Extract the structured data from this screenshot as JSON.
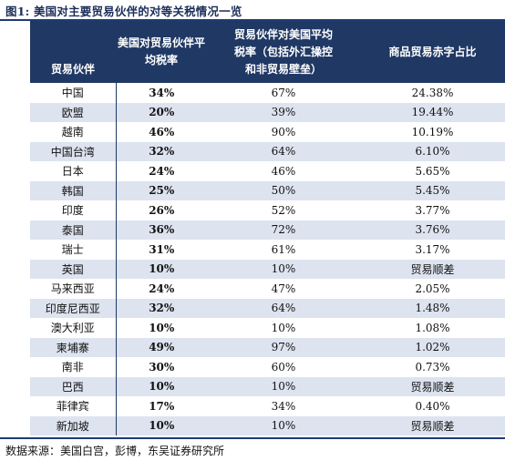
{
  "title": "图1:  美国对主要贸易伙伴的对等关税情况一览",
  "headers": {
    "col0": "贸易伙伴",
    "col1_line1": "美国对贸易伙伴平",
    "col1_line2": "均税率",
    "col2_line1": "贸易伙伴对美国平均",
    "col2_line2": "税率（包括外汇操控",
    "col2_line3": "和非贸易壁垒）",
    "col3": "商品贸易赤字占比"
  },
  "rows": [
    {
      "partner": "中国",
      "us_rate": "34%",
      "partner_rate": "67%",
      "deficit_share": "24.38%"
    },
    {
      "partner": "欧盟",
      "us_rate": "20%",
      "partner_rate": "39%",
      "deficit_share": "19.44%"
    },
    {
      "partner": "越南",
      "us_rate": "46%",
      "partner_rate": "90%",
      "deficit_share": "10.19%"
    },
    {
      "partner": "中国台湾",
      "us_rate": "32%",
      "partner_rate": "64%",
      "deficit_share": "6.10%"
    },
    {
      "partner": "日本",
      "us_rate": "24%",
      "partner_rate": "46%",
      "deficit_share": "5.65%"
    },
    {
      "partner": "韩国",
      "us_rate": "25%",
      "partner_rate": "50%",
      "deficit_share": "5.45%"
    },
    {
      "partner": "印度",
      "us_rate": "26%",
      "partner_rate": "52%",
      "deficit_share": "3.77%"
    },
    {
      "partner": "泰国",
      "us_rate": "36%",
      "partner_rate": "72%",
      "deficit_share": "3.76%"
    },
    {
      "partner": "瑞士",
      "us_rate": "31%",
      "partner_rate": "61%",
      "deficit_share": "3.17%"
    },
    {
      "partner": "英国",
      "us_rate": "10%",
      "partner_rate": "10%",
      "deficit_share": "贸易顺差"
    },
    {
      "partner": "马来西亚",
      "us_rate": "24%",
      "partner_rate": "47%",
      "deficit_share": "2.05%"
    },
    {
      "partner": "印度尼西亚",
      "us_rate": "32%",
      "partner_rate": "64%",
      "deficit_share": "1.48%"
    },
    {
      "partner": "澳大利亚",
      "us_rate": "10%",
      "partner_rate": "10%",
      "deficit_share": "1.08%"
    },
    {
      "partner": "柬埔寨",
      "us_rate": "49%",
      "partner_rate": "97%",
      "deficit_share": "1.02%"
    },
    {
      "partner": "南非",
      "us_rate": "30%",
      "partner_rate": "60%",
      "deficit_share": "0.73%"
    },
    {
      "partner": "巴西",
      "us_rate": "10%",
      "partner_rate": "10%",
      "deficit_share": "贸易顺差"
    },
    {
      "partner": "菲律宾",
      "us_rate": "17%",
      "partner_rate": "34%",
      "deficit_share": "0.40%"
    },
    {
      "partner": "新加坡",
      "us_rate": "10%",
      "partner_rate": "10%",
      "deficit_share": "贸易顺差"
    }
  ],
  "source": "数据来源：美国白宫，彭博，东吴证券研究所",
  "colors": {
    "header_bg": "#203864",
    "stripe_bg": "#dde3ef",
    "title_color": "#1c2e5a"
  }
}
